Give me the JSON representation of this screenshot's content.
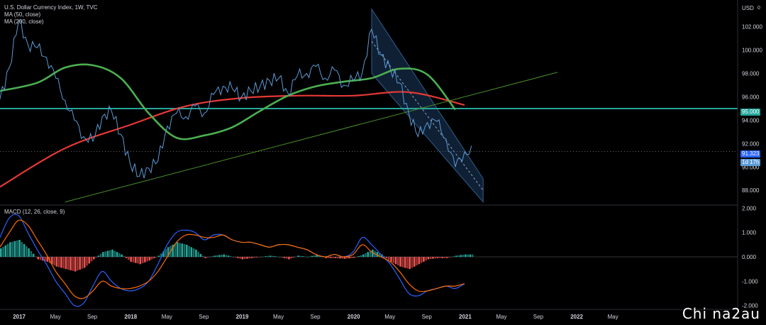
{
  "legend": {
    "title": "U.S. Dollar Currency Index, 1W, TVC",
    "ma50": "MA (50, close)",
    "ma200": "MA (200, close)",
    "macd": "MACD (12, 26, close, 9)"
  },
  "currency": "USD",
  "currency_flag": "0",
  "hline_tag": "95.000",
  "last_price_tag": "91.323",
  "countdown_tag": "1d 17h",
  "watermark": "Chi na2au",
  "colors": {
    "price": "#5b9bd5",
    "ma50": "#4caf50",
    "ma200": "#e53935",
    "hline": "#26a69a",
    "trendline": "#4a8f2a",
    "channel_fill": "#1e3a5f",
    "channel_border": "#2e5d8f",
    "macd_line": "#2962ff",
    "signal_line": "#ff6d00",
    "hist_up": "#26a69a",
    "hist_down": "#ef5350"
  },
  "chart_data": [
    {
      "type": "line",
      "series": [
        {
          "name": "U.S. Dollar Currency Index",
          "x": [
            "2016-11",
            "2016-12",
            "2017-01",
            "2017-02",
            "2017-03",
            "2017-04",
            "2017-05",
            "2017-06",
            "2017-07",
            "2017-08",
            "2017-09",
            "2017-10",
            "2017-11",
            "2017-12",
            "2018-01",
            "2018-02",
            "2018-03",
            "2018-04",
            "2018-05",
            "2018-06",
            "2018-07",
            "2018-08",
            "2018-09",
            "2018-10",
            "2018-11",
            "2018-12",
            "2019-01",
            "2019-02",
            "2019-03",
            "2019-04",
            "2019-05",
            "2019-06",
            "2019-07",
            "2019-08",
            "2019-09",
            "2019-10",
            "2019-11",
            "2019-12",
            "2020-01",
            "2020-02",
            "2020-03",
            "2020-04",
            "2020-05",
            "2020-06",
            "2020-07",
            "2020-08",
            "2020-09",
            "2020-10",
            "2020-11",
            "2020-12",
            "2021-01"
          ],
          "values": [
            95.8,
            98.5,
            102.5,
            100.5,
            100.2,
            99.4,
            97.6,
            95.7,
            94.0,
            92.6,
            92.2,
            94.3,
            94.8,
            92.8,
            90.3,
            89.2,
            89.9,
            90.5,
            93.5,
            94.6,
            94.3,
            95.2,
            94.6,
            96.2,
            96.9,
            96.7,
            96.0,
            96.5,
            96.9,
            97.4,
            97.6,
            96.3,
            97.8,
            98.0,
            98.6,
            97.6,
            98.3,
            97.0,
            97.4,
            98.1,
            101.8,
            99.6,
            98.4,
            97.2,
            94.6,
            92.6,
            93.8,
            93.9,
            92.4,
            90.0,
            91.3
          ]
        },
        {
          "name": "MA (50, close)",
          "x": [
            "2016-11",
            "2017-03",
            "2017-06",
            "2017-09",
            "2017-12",
            "2018-03",
            "2018-06",
            "2018-09",
            "2018-12",
            "2019-03",
            "2019-06",
            "2019-09",
            "2019-12",
            "2020-03",
            "2020-06",
            "2020-09",
            "2020-12"
          ],
          "values": [
            96.5,
            97.2,
            98.5,
            98.7,
            97.6,
            94.6,
            92.5,
            92.7,
            93.4,
            94.8,
            96.1,
            96.9,
            97.3,
            97.6,
            98.4,
            97.9,
            94.9
          ]
        },
        {
          "name": "MA (200, close)",
          "x": [
            "2016-11",
            "2017-06",
            "2018-01",
            "2018-07",
            "2019-01",
            "2019-07",
            "2020-01",
            "2020-07",
            "2021-01"
          ],
          "values": [
            88.3,
            91.6,
            93.6,
            95.2,
            95.9,
            96.1,
            96.1,
            96.4,
            95.3
          ]
        }
      ],
      "hline": 95.0,
      "trendline": {
        "x": [
          "2017-06",
          "2021-11"
        ],
        "values": [
          87.0,
          98.1
        ]
      },
      "channel": {
        "x": [
          "2020-03",
          "2021-03"
        ],
        "upper": [
          103.5,
          89.0
        ],
        "lower": [
          98.0,
          87.0
        ]
      },
      "last_price": 91.323,
      "yticks": [
        88.0,
        90.0,
        92.0,
        94.0,
        96.0,
        98.0,
        100.0,
        102.0
      ],
      "ylim": [
        86.8,
        103.8
      ]
    },
    {
      "type": "bar",
      "title": "MACD (12, 26, close, 9)",
      "x": [
        "2016-11",
        "2016-12",
        "2017-01",
        "2017-02",
        "2017-03",
        "2017-04",
        "2017-05",
        "2017-06",
        "2017-07",
        "2017-08",
        "2017-09",
        "2017-10",
        "2017-11",
        "2017-12",
        "2018-01",
        "2018-02",
        "2018-03",
        "2018-04",
        "2018-05",
        "2018-06",
        "2018-07",
        "2018-08",
        "2018-09",
        "2018-10",
        "2018-11",
        "2018-12",
        "2019-01",
        "2019-02",
        "2019-03",
        "2019-04",
        "2019-05",
        "2019-06",
        "2019-07",
        "2019-08",
        "2019-09",
        "2019-10",
        "2019-11",
        "2019-12",
        "2020-01",
        "2020-02",
        "2020-03",
        "2020-04",
        "2020-05",
        "2020-06",
        "2020-07",
        "2020-08",
        "2020-09",
        "2020-10",
        "2020-11",
        "2020-12",
        "2021-01"
      ],
      "series": [
        {
          "name": "Histogram",
          "values": [
            0.35,
            0.6,
            0.7,
            0.35,
            -0.1,
            -0.2,
            -0.4,
            -0.5,
            -0.6,
            -0.45,
            -0.1,
            0.2,
            0.3,
            0.1,
            -0.2,
            -0.3,
            -0.15,
            0.05,
            0.4,
            0.6,
            0.5,
            0.3,
            -0.05,
            0.05,
            0.1,
            0.0,
            -0.1,
            -0.05,
            0.0,
            0.05,
            0.0,
            -0.1,
            0.05,
            0.0,
            0.08,
            -0.05,
            -0.05,
            -0.08,
            -0.04,
            0.1,
            0.3,
            0.1,
            -0.2,
            -0.4,
            -0.5,
            -0.3,
            -0.1,
            -0.05,
            -0.05,
            0.05,
            0.1
          ]
        },
        {
          "name": "MACD",
          "values": [
            0.8,
            1.6,
            1.7,
            1.0,
            0.3,
            -0.3,
            -1.0,
            -1.5,
            -2.0,
            -1.9,
            -1.2,
            -0.6,
            -1.0,
            -1.3,
            -1.4,
            -1.3,
            -1.0,
            -0.3,
            0.5,
            1.0,
            1.1,
            1.0,
            0.7,
            0.9,
            0.9,
            0.7,
            0.6,
            0.6,
            0.5,
            0.4,
            0.5,
            0.5,
            0.4,
            0.3,
            0.1,
            0.0,
            0.1,
            0.0,
            0.2,
            0.8,
            0.5,
            0.1,
            -0.3,
            -0.9,
            -1.5,
            -1.6,
            -1.4,
            -1.3,
            -1.2,
            -1.3,
            -1.1
          ]
        },
        {
          "name": "Signal",
          "values": [
            0.4,
            1.0,
            1.5,
            1.3,
            0.7,
            0.1,
            -0.6,
            -1.1,
            -1.6,
            -1.7,
            -1.4,
            -1.0,
            -1.2,
            -1.3,
            -1.3,
            -1.2,
            -1.0,
            -0.6,
            0.0,
            0.6,
            0.9,
            0.9,
            0.8,
            0.8,
            0.9,
            0.7,
            0.6,
            0.6,
            0.5,
            0.4,
            0.5,
            0.5,
            0.4,
            0.3,
            0.1,
            0.0,
            0.1,
            0.0,
            0.1,
            0.5,
            0.2,
            0.0,
            -0.2,
            -0.6,
            -1.1,
            -1.4,
            -1.4,
            -1.3,
            -1.2,
            -1.2,
            -1.1
          ]
        }
      ],
      "yticks": [
        -2.0,
        -1.0,
        0.0,
        1.0,
        2.0
      ],
      "ylim": [
        -2.1,
        2.1
      ]
    }
  ],
  "xaxis": {
    "ticks": [
      {
        "label": "2017",
        "x": "2017-01",
        "bold": true
      },
      {
        "label": "May",
        "x": "2017-05",
        "bold": false
      },
      {
        "label": "Sep",
        "x": "2017-09",
        "bold": false
      },
      {
        "label": "2018",
        "x": "2018-01",
        "bold": true
      },
      {
        "label": "May",
        "x": "2018-05",
        "bold": false
      },
      {
        "label": "Sep",
        "x": "2018-09",
        "bold": false
      },
      {
        "label": "2019",
        "x": "2019-01",
        "bold": true
      },
      {
        "label": "May",
        "x": "2019-05",
        "bold": false
      },
      {
        "label": "Sep",
        "x": "2019-09",
        "bold": false
      },
      {
        "label": "2020",
        "x": "2020-01",
        "bold": true
      },
      {
        "label": "May",
        "x": "2020-05",
        "bold": false
      },
      {
        "label": "Sep",
        "x": "2020-09",
        "bold": false
      },
      {
        "label": "2021",
        "x": "2021-01",
        "bold": true
      },
      {
        "label": "May",
        "x": "2021-05",
        "bold": false
      },
      {
        "label": "Sep",
        "x": "2021-09",
        "bold": false
      },
      {
        "label": "2022",
        "x": "2022-01",
        "bold": true
      },
      {
        "label": "May",
        "x": "2022-05",
        "bold": false
      }
    ]
  }
}
